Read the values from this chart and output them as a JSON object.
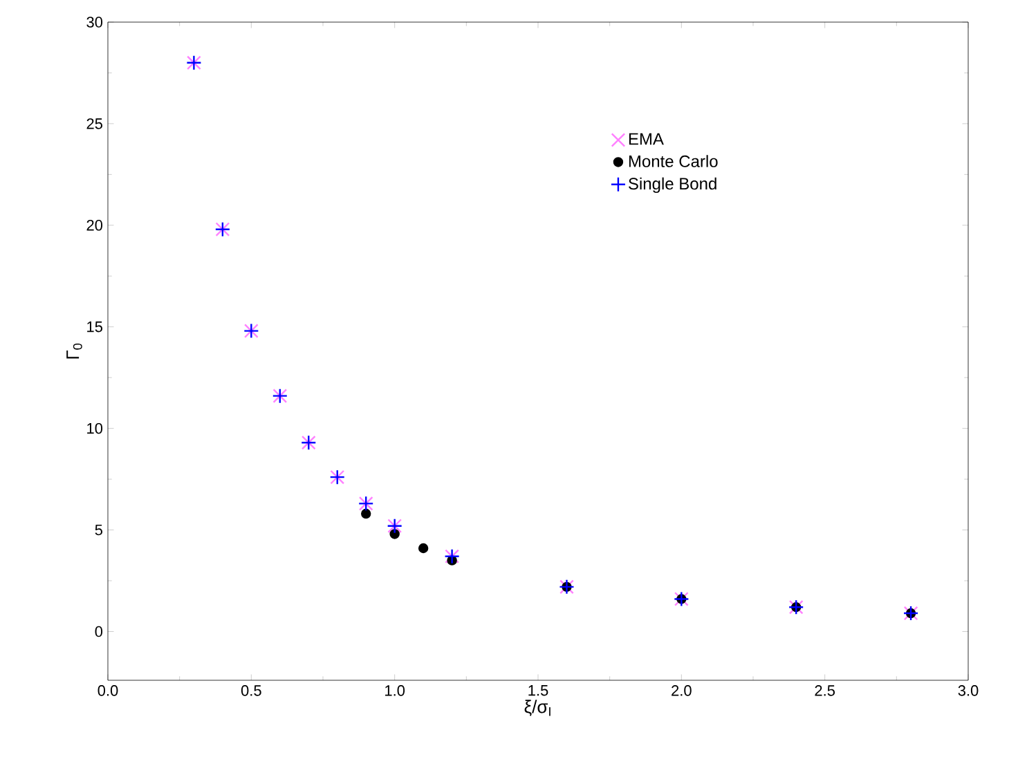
{
  "chart_data": {
    "type": "scatter",
    "xlabel": "ξ/σ$_{I}$",
    "ylabel": "Γ$_{0}$",
    "xlim": [
      0,
      3
    ],
    "ylim": [
      -2.4,
      30
    ],
    "xticks": [
      {
        "value": 0,
        "label": "0.0"
      },
      {
        "value": 0.5,
        "label": "0.5"
      },
      {
        "value": 1,
        "label": "1.0"
      },
      {
        "value": 1.5,
        "label": "1.5"
      },
      {
        "value": 2,
        "label": "2.0"
      },
      {
        "value": 2.5,
        "label": "2.5"
      },
      {
        "value": 3,
        "label": "3.0"
      }
    ],
    "yticks": [
      0,
      5,
      10,
      15,
      20,
      25,
      30
    ],
    "grid": false,
    "legend": "top right",
    "series": [
      {
        "name": "EMA",
        "color": "#ff80ff",
        "marker": "cross",
        "x": [
          0.3,
          0.4,
          0.5,
          0.6,
          0.7,
          0.8,
          0.9,
          1.0,
          1.2,
          1.6,
          2.0,
          2.4,
          2.8
        ],
        "values": [
          28.0,
          19.8,
          14.8,
          11.6,
          9.3,
          7.6,
          6.3,
          5.2,
          3.7,
          2.2,
          1.6,
          1.2,
          0.9
        ]
      },
      {
        "name": "Monte Carlo",
        "color": "#000000",
        "marker": "circle",
        "x": [
          0.9,
          1.0,
          1.1,
          1.2,
          1.6,
          2.0,
          2.4,
          2.8
        ],
        "values": [
          5.8,
          4.8,
          4.1,
          3.5,
          2.2,
          1.6,
          1.2,
          0.9
        ]
      },
      {
        "name": "Single Bond",
        "color": "#0000ff",
        "marker": "plus",
        "x": [
          0.3,
          0.4,
          0.5,
          0.6,
          0.7,
          0.8,
          0.9,
          1.0,
          1.2,
          1.6,
          2.0,
          2.4,
          2.8
        ],
        "values": [
          28.0,
          19.8,
          14.8,
          11.6,
          9.3,
          7.6,
          6.3,
          5.2,
          3.7,
          2.2,
          1.6,
          1.2,
          0.9
        ]
      }
    ]
  }
}
